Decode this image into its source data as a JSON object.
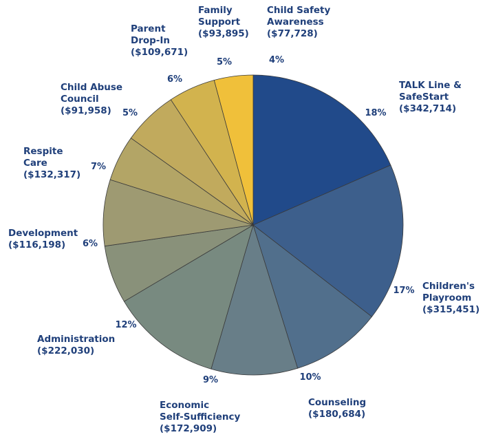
{
  "chart_data": {
    "type": "pie",
    "start_angle_deg": 0,
    "direction": "clockwise",
    "slices": [
      {
        "name_lines": [
          "TALK Line &",
          "SafeStart",
          "($342,714)"
        ],
        "value": 342714,
        "pct_label": "18%",
        "color": "#214a8a"
      },
      {
        "name_lines": [
          "Children's",
          "Playroom",
          "($315,451)"
        ],
        "value": 315451,
        "pct_label": "17%",
        "color": "#3d5f8c"
      },
      {
        "name_lines": [
          "Counseling",
          "($180,684)"
        ],
        "value": 180684,
        "pct_label": "10%",
        "color": "#516f8c"
      },
      {
        "name_lines": [
          "Economic",
          "Self-Sufficiency",
          "($172,909)"
        ],
        "value": 172909,
        "pct_label": "9%",
        "color": "#687e88"
      },
      {
        "name_lines": [
          "Administration",
          "($222,030)"
        ],
        "value": 222030,
        "pct_label": "12%",
        "color": "#788a80"
      },
      {
        "name_lines": [
          "Development",
          "($116,198)"
        ],
        "value": 116198,
        "pct_label": "6%",
        "color": "#89917a"
      },
      {
        "name_lines": [
          "Respite",
          "Care",
          "($132,317)"
        ],
        "value": 132317,
        "pct_label": "7%",
        "color": "#9e9a72"
      },
      {
        "name_lines": [
          "Child Abuse",
          "Council",
          "($91,958)"
        ],
        "value": 91958,
        "pct_label": "5%",
        "color": "#b3a566"
      },
      {
        "name_lines": [
          "Parent",
          "Drop-In",
          "($109,671)"
        ],
        "value": 109671,
        "pct_label": "6%",
        "color": "#c1aa5d"
      },
      {
        "name_lines": [
          "Family",
          "Support",
          "($93,895)"
        ],
        "value": 93895,
        "pct_label": "5%",
        "color": "#d2b34e"
      },
      {
        "name_lines": [
          "Child Safety",
          "Awareness",
          "($77,728)"
        ],
        "value": 77728,
        "pct_label": "4%",
        "color": "#f0c03a"
      }
    ]
  }
}
